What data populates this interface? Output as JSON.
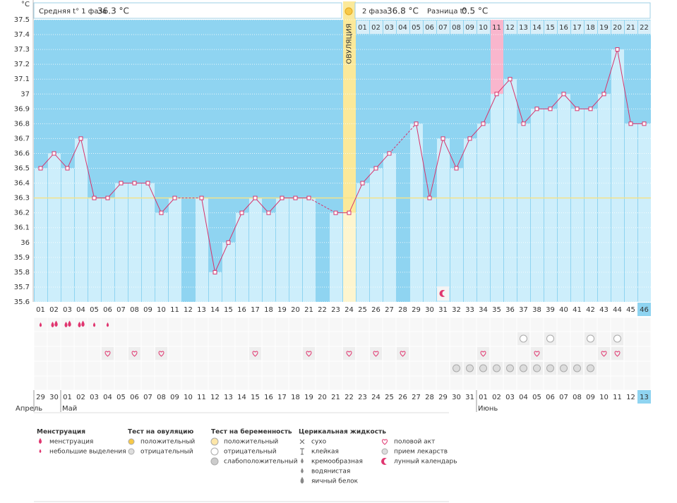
{
  "chart_data": {
    "type": "bbt",
    "unit": "°C",
    "header": {
      "phase1_label": "Средняя t° 1 фаза",
      "phase1_value": "36.3 °C",
      "phase2_label": "2 фаза",
      "phase2_value": "36.8 °C",
      "diff_label": "Разница t°",
      "diff_value": "0.5 °C"
    },
    "ylim": [
      35.6,
      37.5
    ],
    "yticks": [
      35.6,
      35.7,
      35.8,
      35.9,
      36,
      36.1,
      36.2,
      36.3,
      36.4,
      36.5,
      36.6,
      36.7,
      36.8,
      36.9,
      37,
      37.1,
      37.2,
      37.3,
      37.4,
      37.5
    ],
    "coverline": 36.3,
    "categories": [
      "01",
      "02",
      "03",
      "04",
      "05",
      "06",
      "07",
      "08",
      "09",
      "10",
      "11",
      "12",
      "13",
      "14",
      "15",
      "16",
      "17",
      "18",
      "19",
      "20",
      "21",
      "22",
      "23",
      "24",
      "25",
      "26",
      "27",
      "28",
      "29",
      "30",
      "31",
      "32",
      "33",
      "34",
      "35",
      "36",
      "37",
      "38",
      "39",
      "40",
      "41",
      "42",
      "43",
      "44",
      "45",
      "46"
    ],
    "values": [
      36.5,
      36.6,
      36.5,
      36.7,
      36.3,
      36.3,
      36.4,
      36.4,
      36.4,
      36.2,
      36.3,
      null,
      36.3,
      35.8,
      36.0,
      36.2,
      36.3,
      36.2,
      36.3,
      36.3,
      36.3,
      null,
      36.2,
      36.2,
      36.4,
      36.5,
      36.6,
      null,
      36.8,
      36.3,
      36.7,
      36.5,
      36.7,
      36.8,
      37.0,
      37.1,
      36.8,
      36.9,
      36.9,
      37.0,
      36.9,
      36.9,
      37.0,
      37.3,
      36.8,
      36.8
    ],
    "line_color": "#d6336c",
    "bar_color": "#cdeefb",
    "background_color": "#8fd4f1",
    "ovulation": {
      "label": "ОВУЛЯЦИЯ",
      "index": 23
    },
    "pink_column": 34,
    "current_index": 45,
    "phase2_days": [
      "01",
      "02",
      "03",
      "04",
      "05",
      "06",
      "07",
      "08",
      "09",
      "10",
      "11",
      "12",
      "13",
      "14",
      "15",
      "16",
      "17",
      "18",
      "19",
      "20",
      "21",
      "22"
    ],
    "dates": [
      "29",
      "30",
      "01",
      "02",
      "03",
      "04",
      "05",
      "06",
      "07",
      "08",
      "09",
      "10",
      "11",
      "12",
      "13",
      "14",
      "15",
      "16",
      "17",
      "18",
      "19",
      "20",
      "21",
      "22",
      "23",
      "24",
      "25",
      "26",
      "27",
      "28",
      "29",
      "30",
      "31",
      "01",
      "02",
      "03",
      "04",
      "05",
      "06",
      "07",
      "08",
      "09",
      "10",
      "11",
      "12",
      "13"
    ],
    "red_dates": [
      0,
      6,
      7,
      13,
      14,
      20,
      21,
      27,
      28,
      34,
      35,
      41,
      42
    ],
    "months": [
      {
        "label": "Апрель",
        "index": 0
      },
      {
        "label": "Май",
        "index": 2
      },
      {
        "label": "Июнь",
        "index": 33
      }
    ],
    "rows": {
      "menstruation_heavy": [
        2,
        3,
        4
      ],
      "menstruation_light": [
        1,
        5,
        6
      ],
      "ovulation_test_negative": [
        37,
        39,
        42,
        44
      ],
      "intercourse": [
        6,
        8,
        10,
        17,
        21,
        24,
        26,
        28,
        34,
        38,
        43,
        44
      ],
      "medication": [
        32,
        33,
        34,
        35,
        36,
        37,
        38,
        39,
        40,
        41,
        42
      ],
      "moon": [
        31
      ]
    },
    "legend": [
      {
        "title": "Менструация",
        "items": [
          "менструация",
          "небольшие выделения"
        ]
      },
      {
        "title": "Тест на овуляцию",
        "items": [
          "положительный",
          "отрицательный"
        ]
      },
      {
        "title": "Тест на беременность",
        "items": [
          "положительный",
          "отрицательный",
          "слабоположительный"
        ]
      },
      {
        "title": "Церикальная жидкость",
        "items": [
          "сухо",
          "клейкая",
          "кремообразная",
          "водянистая",
          "яичный белок"
        ]
      },
      {
        "items": [
          "половой акт",
          "прием лекарств",
          "лунный календарь"
        ]
      }
    ]
  }
}
